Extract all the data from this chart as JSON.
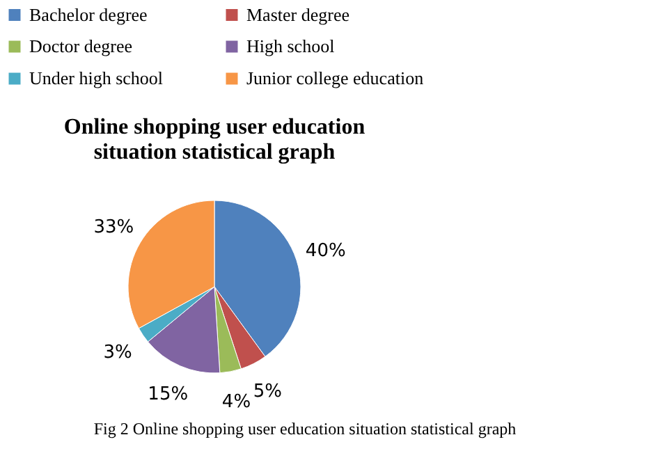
{
  "chart_data": {
    "type": "pie",
    "title": "Online shopping user education situation statistical graph",
    "categories": [
      "Bachelor degree",
      "Master degree",
      "Doctor degree",
      "High school",
      "Under high school",
      "Junior college education"
    ],
    "values": [
      40,
      5,
      4,
      15,
      3,
      33
    ],
    "value_labels": [
      "40%",
      "5%",
      "4%",
      "15%",
      "3%",
      "33%"
    ],
    "colors": [
      "#4f81bd",
      "#c0504d",
      "#9bbb59",
      "#8064a2",
      "#4bacc6",
      "#f79646"
    ],
    "legend": "top",
    "annotations": [
      "Fig 2 Online shopping user education situation statistical graph"
    ]
  }
}
